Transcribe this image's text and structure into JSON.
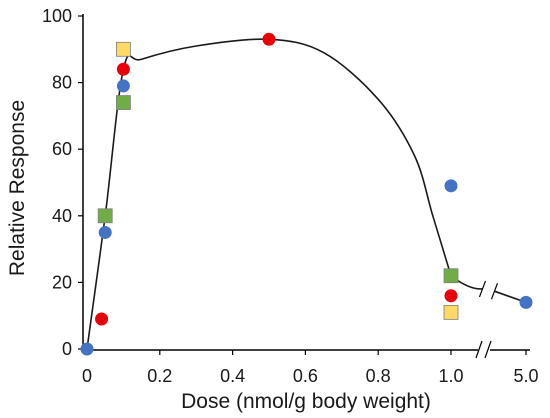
{
  "chart_data": {
    "type": "scatter",
    "title": "",
    "xlabel": "Dose (nmol/g body weight)",
    "ylabel": "Relative Response",
    "xlim": [
      0,
      5.0
    ],
    "ylim": [
      0,
      100
    ],
    "x_axis_break": "between 1.0 and 5.0",
    "x_ticks": [
      "0",
      "0.2",
      "0.4",
      "0.6",
      "0.8",
      "1.0",
      "5.0"
    ],
    "y_ticks": [
      "0",
      "20",
      "40",
      "60",
      "80",
      "100"
    ],
    "grid": false,
    "legend": "none",
    "series": [
      {
        "marker": "circle",
        "color": "#4472c4",
        "points": [
          {
            "x": 0,
            "y": 0
          },
          {
            "x": 0.05,
            "y": 35
          },
          {
            "x": 0.1,
            "y": 79
          },
          {
            "x": 1.0,
            "y": 49
          },
          {
            "x": 5.0,
            "y": 14
          }
        ]
      },
      {
        "marker": "circle",
        "color": "#e8000b",
        "points": [
          {
            "x": 0.04,
            "y": 9
          },
          {
            "x": 0.1,
            "y": 84
          },
          {
            "x": 0.5,
            "y": 93
          },
          {
            "x": 1.0,
            "y": 16
          }
        ]
      },
      {
        "marker": "square",
        "color": "#70ad47",
        "points": [
          {
            "x": 0.05,
            "y": 40
          },
          {
            "x": 0.1,
            "y": 74
          },
          {
            "x": 1.0,
            "y": 22
          }
        ]
      },
      {
        "marker": "square",
        "color": "#ffd966",
        "points": [
          {
            "x": 0.1,
            "y": 90
          },
          {
            "x": 1.0,
            "y": 11
          }
        ]
      }
    ],
    "trend_curve": {
      "color": "#1a1a1a",
      "points": [
        {
          "x": 0,
          "y": 0
        },
        {
          "x": 0.05,
          "y": 40
        },
        {
          "x": 0.1,
          "y": 84
        },
        {
          "x": 0.15,
          "y": 87
        },
        {
          "x": 0.3,
          "y": 91
        },
        {
          "x": 0.5,
          "y": 93
        },
        {
          "x": 0.65,
          "y": 89
        },
        {
          "x": 0.8,
          "y": 75
        },
        {
          "x": 0.9,
          "y": 58
        },
        {
          "x": 0.95,
          "y": 40
        },
        {
          "x": 1.0,
          "y": 22
        },
        {
          "x": 5.0,
          "y": 14
        }
      ]
    }
  }
}
